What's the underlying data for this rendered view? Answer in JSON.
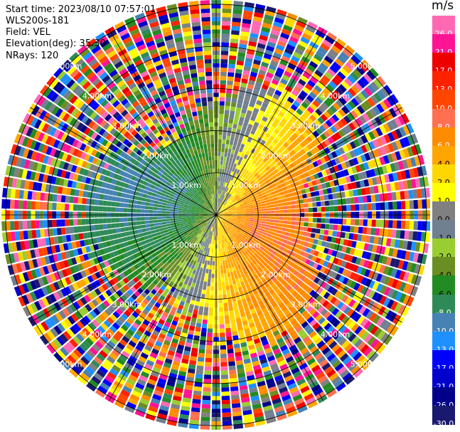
{
  "header": {
    "start_time": "Start time: 2023/08/10 07:57:01",
    "instrument": "WLS200s-181",
    "field": "Field: VEL",
    "elevation": "Elevation(deg): 35.30",
    "nrays": "NRays: 120"
  },
  "chart_data": {
    "type": "heatmap",
    "projection": "polar PPI",
    "field": "VEL",
    "unit": "m/s",
    "n_rays": 120,
    "range_rings_km": [
      1.0,
      2.0,
      3.0,
      4.0,
      5.0
    ],
    "ring_labels": [
      "1.00km",
      "2.00km",
      "3.00km",
      "4.00km",
      "5.00km"
    ],
    "max_range_km": 5.1,
    "colorbar": {
      "unit_label": "m/s",
      "ticks": [
        "26.0",
        "21.0",
        "17.0",
        "13.0",
        "10.0",
        "8.0",
        "6.0",
        "4.0",
        "2.0",
        "1.0",
        "0.0",
        "-1.0",
        "-2.0",
        "-4.0",
        "-6.0",
        "-8.0",
        "-10.0",
        "-13.0",
        "-17.0",
        "-21.0",
        "-26.0",
        "-30.0"
      ],
      "colors": [
        "#ff69b4",
        "#ff1493",
        "#ee0000",
        "#ff2200",
        "#ff4500",
        "#ff7050",
        "#ff8c00",
        "#ffa500",
        "#ffd700",
        "#ffff00",
        "#808080",
        "#708090",
        "#9acd32",
        "#6b8e23",
        "#228b22",
        "#2e8b57",
        "#4682b4",
        "#1e90ff",
        "#0000ff",
        "#0000cd",
        "#00008b",
        "#191970"
      ]
    },
    "velocity_pattern": "outbound (positive) toward east, inbound (negative) toward west, noisy speckle beyond ~2.5-3 km"
  }
}
